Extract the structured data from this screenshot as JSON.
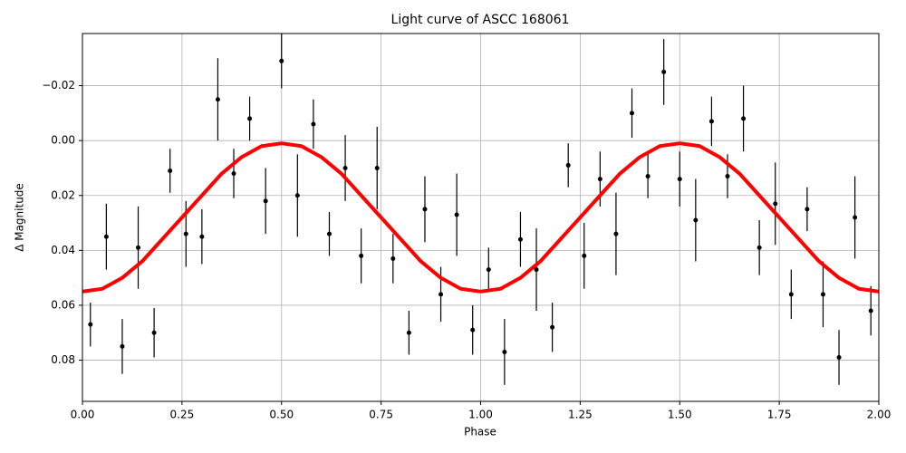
{
  "chart_data": {
    "type": "scatter",
    "title": "Light curve of ASCC 168061",
    "xlabel": "Phase",
    "ylabel": "Δ Magnitude",
    "xlim": [
      0,
      2
    ],
    "ylim": [
      -0.039,
      0.095
    ],
    "y_inverted": true,
    "grid": true,
    "xticks": [
      {
        "value": 0,
        "label": "0.00"
      },
      {
        "value": 0.25,
        "label": "0.25"
      },
      {
        "value": 0.5,
        "label": "0.50"
      },
      {
        "value": 0.75,
        "label": "0.75"
      },
      {
        "value": 1,
        "label": "1.00"
      },
      {
        "value": 1.25,
        "label": "1.25"
      },
      {
        "value": 1.5,
        "label": "1.50"
      },
      {
        "value": 1.75,
        "label": "1.75"
      },
      {
        "value": 2,
        "label": "2.00"
      }
    ],
    "yticks": [
      {
        "value": -0.02,
        "label": "−0.02"
      },
      {
        "value": 0,
        "label": "0.00"
      },
      {
        "value": 0.02,
        "label": "0.02"
      },
      {
        "value": 0.04,
        "label": "0.04"
      },
      {
        "value": 0.06,
        "label": "0.06"
      },
      {
        "value": 0.08,
        "label": "0.08"
      }
    ],
    "series": [
      {
        "type": "errorbar",
        "color": "#000000",
        "x": [
          0.02,
          0.06,
          0.1,
          0.14,
          0.18,
          0.22,
          0.26,
          0.3,
          0.34,
          0.38,
          0.42,
          0.46,
          0.5,
          0.54,
          0.58,
          0.62,
          0.66,
          0.7,
          0.74,
          0.78,
          0.82,
          0.86,
          0.9,
          0.94,
          0.98,
          1.02,
          1.06,
          1.1,
          1.14,
          1.18,
          1.22,
          1.26,
          1.3,
          1.34,
          1.38,
          1.42,
          1.46,
          1.5,
          1.54,
          1.58,
          1.62,
          1.66,
          1.7,
          1.74,
          1.78,
          1.82,
          1.86,
          1.9,
          1.94,
          1.98
        ],
        "values": [
          0.067,
          0.035,
          0.075,
          0.039,
          0.07,
          0.011,
          0.034,
          0.035,
          -0.015,
          0.012,
          -0.008,
          0.022,
          -0.029,
          0.02,
          -0.006,
          0.034,
          0.01,
          0.042,
          0.01,
          0.043,
          0.07,
          0.025,
          0.056,
          0.027,
          0.069,
          0.047,
          0.077,
          0.036,
          0.047,
          0.068,
          0.009,
          0.042,
          0.014,
          0.034,
          -0.01,
          0.013,
          -0.025,
          0.014,
          0.029,
          -0.007,
          0.013,
          -0.008,
          0.039,
          0.023,
          0.056,
          0.025,
          0.056,
          0.079,
          0.028,
          0.062
        ],
        "errors": [
          0.008,
          0.012,
          0.01,
          0.015,
          0.009,
          0.008,
          0.012,
          0.01,
          0.015,
          0.009,
          0.008,
          0.012,
          0.01,
          0.015,
          0.009,
          0.008,
          0.012,
          0.01,
          0.015,
          0.009,
          0.008,
          0.012,
          0.01,
          0.015,
          0.009,
          0.008,
          0.012,
          0.01,
          0.015,
          0.009,
          0.008,
          0.012,
          0.01,
          0.015,
          0.009,
          0.008,
          0.012,
          0.01,
          0.015,
          0.009,
          0.008,
          0.012,
          0.01,
          0.015,
          0.009,
          0.008,
          0.012,
          0.01,
          0.015,
          0.009
        ]
      },
      {
        "type": "line",
        "color": "#ff0000",
        "x": [
          0,
          0.05,
          0.1,
          0.15,
          0.2,
          0.25,
          0.3,
          0.35,
          0.4,
          0.45,
          0.5,
          0.55,
          0.6,
          0.65,
          0.7,
          0.75,
          0.8,
          0.85,
          0.9,
          0.95,
          1,
          1.05,
          1.1,
          1.15,
          1.2,
          1.25,
          1.3,
          1.35,
          1.4,
          1.45,
          1.5,
          1.55,
          1.6,
          1.65,
          1.7,
          1.75,
          1.8,
          1.85,
          1.9,
          1.95,
          2
        ],
        "values": [
          0.055,
          0.054,
          0.05,
          0.044,
          0.036,
          0.028,
          0.02,
          0.012,
          0.006,
          0.002,
          0.001,
          0.002,
          0.006,
          0.012,
          0.02,
          0.028,
          0.036,
          0.044,
          0.05,
          0.054,
          0.055,
          0.054,
          0.05,
          0.044,
          0.036,
          0.028,
          0.02,
          0.012,
          0.006,
          0.002,
          0.001,
          0.002,
          0.006,
          0.012,
          0.02,
          0.028,
          0.036,
          0.044,
          0.05,
          0.054,
          0.055
        ]
      }
    ]
  }
}
